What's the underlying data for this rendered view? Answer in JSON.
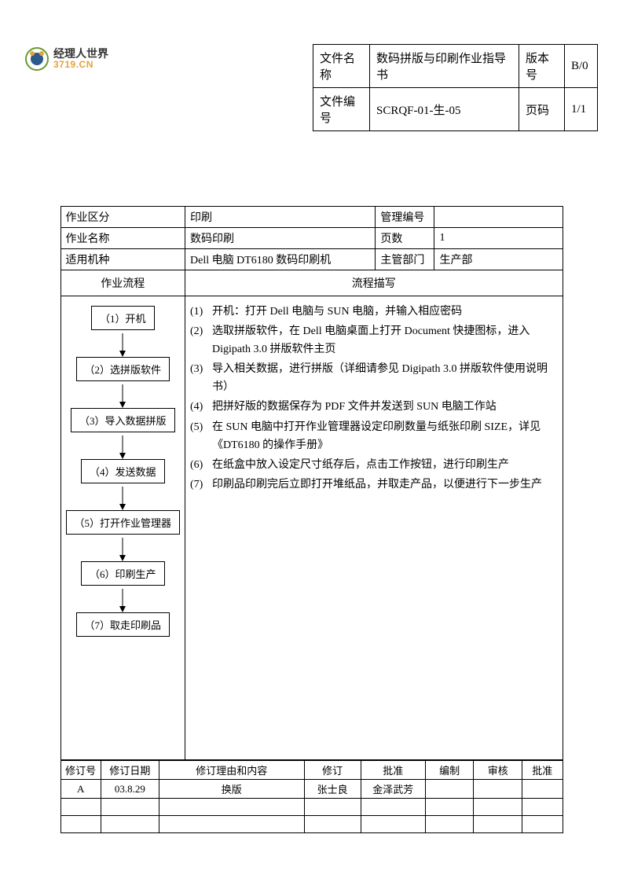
{
  "logo": {
    "cn": "经理人世界",
    "en": "3719.CN"
  },
  "docInfo": {
    "row1": {
      "l1": "文件名称",
      "v1": "数码拼版与印刷作业指导书",
      "l2": "版本号",
      "v2": "B/0"
    },
    "row2": {
      "l1": "文件编号",
      "v1": "SCRQF-01-生-05",
      "l2": "页码",
      "v2": "1/1"
    }
  },
  "header": {
    "r1": {
      "c1": "作业区分",
      "c2": "印刷",
      "c3": "管理编号",
      "c4": ""
    },
    "r2": {
      "c1": "作业名称",
      "c2": "数码印刷",
      "c3": "页数",
      "c4": "1"
    },
    "r3": {
      "c1": "适用机种",
      "c2": "Dell 电脑   DT6180 数码印刷机",
      "c3": "主管部门",
      "c4": "生产部"
    }
  },
  "flowHeader": {
    "left": "作业流程",
    "right": "流程描写"
  },
  "flowSteps": [
    "（1）开机",
    "（2）选拼版软件",
    "（3）导入数据拼版",
    "（4）发送数据",
    "（5）打开作业管理器",
    "（6）印刷生产",
    "（7）取走印刷品"
  ],
  "descSteps": [
    {
      "n": "(1)",
      "t": "开机：打开 Dell 电脑与 SUN 电脑，并输入相应密码"
    },
    {
      "n": "(2)",
      "t": "选取拼版软件，在 Dell 电脑桌面上打开 Document 快捷图标，进入 Digipath 3.0 拼版软件主页"
    },
    {
      "n": "(3)",
      "t": "导入相关数据，进行拼版（详细请参见 Digipath 3.0 拼版软件使用说明书）"
    },
    {
      "n": "(4)",
      "t": "把拼好版的数据保存为 PDF 文件并发送到 SUN 电脑工作站"
    },
    {
      "n": "(5)",
      "t": "在 SUN 电脑中打开作业管理器设定印刷数量与纸张印刷 SIZE，详见《DT6180 的操作手册》"
    },
    {
      "n": "(6)",
      "t": "在纸盒中放入设定尺寸纸存后，点击工作按钮，进行印刷生产"
    },
    {
      "n": "(7)",
      "t": "印刷品印刷完后立即打开堆纸品，并取走产品，以便进行下一步生产"
    }
  ],
  "revHeader": {
    "c1": "修订号",
    "c2": "修订日期",
    "c3": "修订理由和内容",
    "c4": "修订",
    "c5": "批准",
    "c6": "编制",
    "c7": "审核",
    "c8": "批准"
  },
  "revRows": [
    {
      "c1": "A",
      "c2": "03.8.29",
      "c3": "换版",
      "c4": "张士良",
      "c5": "金泽武芳",
      "c6": "",
      "c7": "",
      "c8": ""
    },
    {
      "c1": "",
      "c2": "",
      "c3": "",
      "c4": "",
      "c5": "",
      "c6": "",
      "c7": "",
      "c8": ""
    },
    {
      "c1": "",
      "c2": "",
      "c3": "",
      "c4": "",
      "c5": "",
      "c6": "",
      "c7": "",
      "c8": ""
    }
  ]
}
